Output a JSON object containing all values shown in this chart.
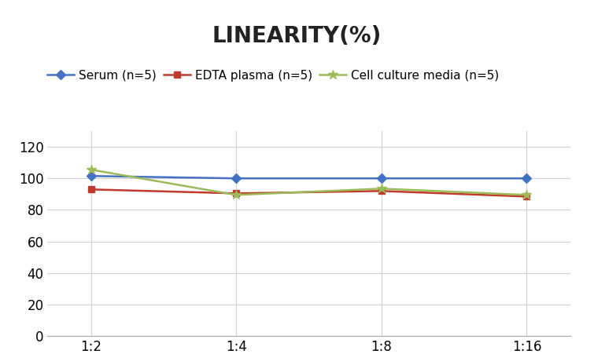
{
  "title": "LINEARITY(%)",
  "x_labels": [
    "1:2",
    "1:4",
    "1:8",
    "1:16"
  ],
  "x_positions": [
    0,
    1,
    2,
    3
  ],
  "series": [
    {
      "label": "Serum (n=5)",
      "values": [
        101.5,
        100.0,
        100.0,
        100.0
      ],
      "color": "#4472C4",
      "marker": "D",
      "marker_size": 6,
      "linewidth": 1.8
    },
    {
      "label": "EDTA plasma (n=5)",
      "values": [
        93.0,
        90.5,
        92.0,
        88.5
      ],
      "color": "#C0392B",
      "marker": "s",
      "marker_size": 6,
      "linewidth": 1.8
    },
    {
      "label": "Cell culture media (n=5)",
      "values": [
        105.5,
        89.5,
        93.5,
        89.5
      ],
      "color": "#9BBB59",
      "marker": "*",
      "marker_size": 9,
      "linewidth": 1.8
    }
  ],
  "ylim": [
    0,
    130
  ],
  "yticks": [
    0,
    20,
    40,
    60,
    80,
    100,
    120
  ],
  "title_fontsize": 20,
  "title_fontweight": "bold",
  "legend_fontsize": 11,
  "tick_fontsize": 12,
  "background_color": "#ffffff",
  "grid_color": "#d0d0d0",
  "grid_linewidth": 0.8
}
